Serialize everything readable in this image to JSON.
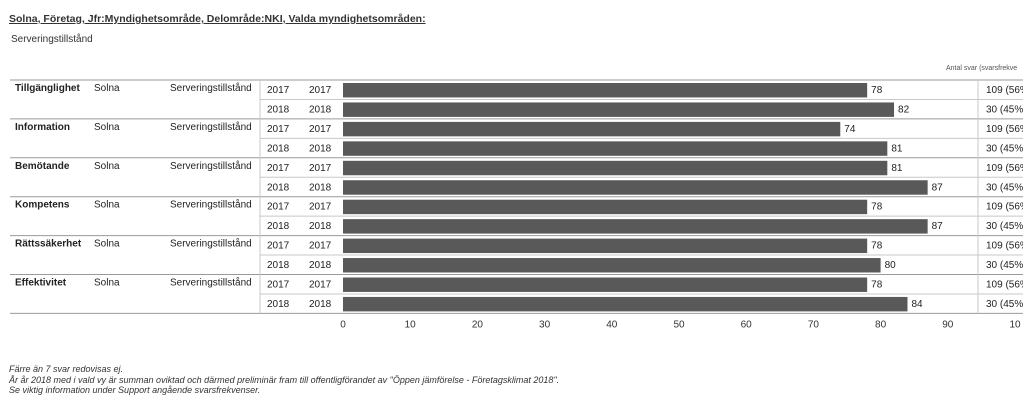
{
  "header": {
    "title": "Solna, Företag, Jfr:Myndighetsområde, Delområde:NKI, Valda myndighetsområden:",
    "subtitle": "Serveringstillstånd",
    "right_label": "Antal svar (svarsfrekve"
  },
  "chart_data": {
    "type": "bar",
    "orientation": "horizontal",
    "title": "",
    "xlabel": "",
    "ylabel": "",
    "xlim": [
      0,
      100
    ],
    "x_ticks": [
      "0",
      "10",
      "20",
      "30",
      "40",
      "50",
      "60",
      "70",
      "80",
      "90",
      "10"
    ],
    "bar_color": "#595959",
    "groups": [
      {
        "label": "Tillgänglighet",
        "kommun": "Solna",
        "omrade": "Serveringstillstånd",
        "rows": [
          {
            "year": "2017",
            "year_label": "2017",
            "value": 78,
            "antal": "109 (56%"
          },
          {
            "year": "2018",
            "year_label": "2018",
            "value": 82,
            "antal": "30 (45%"
          }
        ]
      },
      {
        "label": "Information",
        "kommun": "Solna",
        "omrade": "Serveringstillstånd",
        "rows": [
          {
            "year": "2017",
            "year_label": "2017",
            "value": 74,
            "antal": "109 (56%"
          },
          {
            "year": "2018",
            "year_label": "2018",
            "value": 81,
            "antal": "30 (45%"
          }
        ]
      },
      {
        "label": "Bemötande",
        "kommun": "Solna",
        "omrade": "Serveringstillstånd",
        "rows": [
          {
            "year": "2017",
            "year_label": "2017",
            "value": 81,
            "antal": "109 (56%"
          },
          {
            "year": "2018",
            "year_label": "2018",
            "value": 87,
            "antal": "30 (45%"
          }
        ]
      },
      {
        "label": "Kompetens",
        "kommun": "Solna",
        "omrade": "Serveringstillstånd",
        "rows": [
          {
            "year": "2017",
            "year_label": "2017",
            "value": 78,
            "antal": "109 (56%"
          },
          {
            "year": "2018",
            "year_label": "2018",
            "value": 87,
            "antal": "30 (45%"
          }
        ]
      },
      {
        "label": "Rättssäkerhet",
        "kommun": "Solna",
        "omrade": "Serveringstillstånd",
        "rows": [
          {
            "year": "2017",
            "year_label": "2017",
            "value": 78,
            "antal": "109 (56%"
          },
          {
            "year": "2018",
            "year_label": "2018",
            "value": 80,
            "antal": "30 (45%"
          }
        ]
      },
      {
        "label": "Effektivitet",
        "kommun": "Solna",
        "omrade": "Serveringstillstånd",
        "rows": [
          {
            "year": "2017",
            "year_label": "2017",
            "value": 78,
            "antal": "109 (56%"
          },
          {
            "year": "2018",
            "year_label": "2018",
            "value": 84,
            "antal": "30 (45%"
          }
        ]
      }
    ]
  },
  "footer": {
    "lines": [
      "Färre än 7 svar redovisas ej.",
      "År år 2018 med i vald vy är summan oviktad och därmed preliminär fram till offentligförandet av \"Öppen jämförelse - Företagsklimat 2018\".",
      "Se viktig information under Support angående svarsfrekvenser."
    ]
  }
}
